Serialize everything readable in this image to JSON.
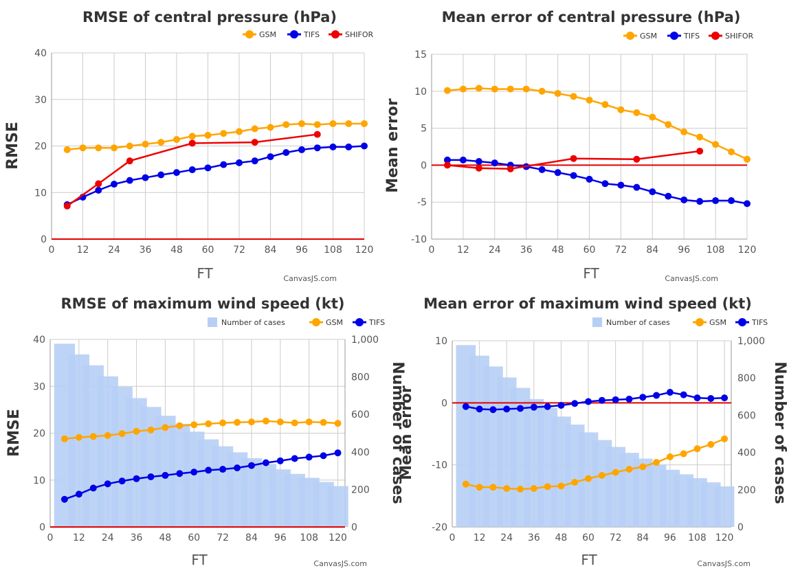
{
  "watermark": "CanvasJS.com",
  "colors": {
    "gsm": "#ffa500",
    "tifs": "#0000e6",
    "shifor": "#ee0000",
    "cases": "#b7cff5",
    "zero_line": "#e00000"
  },
  "chart_data": [
    {
      "type": "line",
      "title": "RMSE of central pressure (hPa)",
      "xlabel": "FT",
      "ylabel": "RMSE",
      "xlim": [
        0,
        120
      ],
      "ylim": [
        0,
        40
      ],
      "xticks": [
        "0",
        "12",
        "24",
        "36",
        "48",
        "60",
        "72",
        "84",
        "96",
        "108",
        "120"
      ],
      "yticks": [
        "0",
        "10",
        "20",
        "30",
        "40"
      ],
      "grid": true,
      "legend": "top-right",
      "series": [
        {
          "name": "GSM",
          "color": "#ffa500",
          "x": [
            6,
            12,
            18,
            24,
            30,
            36,
            42,
            48,
            54,
            60,
            66,
            72,
            78,
            84,
            90,
            96,
            102,
            108,
            114,
            120
          ],
          "values": [
            19.2,
            19.6,
            19.6,
            19.6,
            20.0,
            20.4,
            20.8,
            21.4,
            22.1,
            22.3,
            22.7,
            23.1,
            23.7,
            24.0,
            24.6,
            24.8,
            24.6,
            24.8,
            24.8,
            24.8
          ]
        },
        {
          "name": "TIFS",
          "color": "#0000e6",
          "x": [
            6,
            12,
            18,
            24,
            30,
            36,
            42,
            48,
            54,
            60,
            66,
            72,
            78,
            84,
            90,
            96,
            102,
            108,
            114,
            120
          ],
          "values": [
            7.4,
            9.0,
            10.5,
            11.8,
            12.6,
            13.2,
            13.8,
            14.3,
            14.9,
            15.3,
            16.0,
            16.4,
            16.8,
            17.7,
            18.6,
            19.2,
            19.6,
            19.8,
            19.8,
            20.0
          ]
        },
        {
          "name": "SHIFOR",
          "color": "#ee0000",
          "x": [
            6,
            18,
            30,
            54,
            78,
            102
          ],
          "values": [
            7.1,
            11.9,
            16.8,
            20.6,
            20.8,
            22.5
          ]
        }
      ]
    },
    {
      "type": "line",
      "title": "Mean error of central pressure (hPa)",
      "xlabel": "FT",
      "ylabel": "Mean error",
      "xlim": [
        0,
        120
      ],
      "ylim": [
        -10,
        15
      ],
      "xticks": [
        "0",
        "12",
        "24",
        "36",
        "48",
        "60",
        "72",
        "84",
        "96",
        "108",
        "120"
      ],
      "yticks": [
        "-10",
        "-5",
        "0",
        "5",
        "10",
        "15"
      ],
      "grid": true,
      "legend": "top-right",
      "series": [
        {
          "name": "GSM",
          "color": "#ffa500",
          "x": [
            6,
            12,
            18,
            24,
            30,
            36,
            42,
            48,
            54,
            60,
            66,
            72,
            78,
            84,
            90,
            96,
            102,
            108,
            114,
            120
          ],
          "values": [
            10.1,
            10.3,
            10.4,
            10.3,
            10.3,
            10.3,
            10.0,
            9.7,
            9.3,
            8.8,
            8.2,
            7.5,
            7.1,
            6.5,
            5.5,
            4.5,
            3.8,
            2.8,
            1.8,
            0.8
          ]
        },
        {
          "name": "TIFS",
          "color": "#0000e6",
          "x": [
            6,
            12,
            18,
            24,
            30,
            36,
            42,
            48,
            54,
            60,
            66,
            72,
            78,
            84,
            90,
            96,
            102,
            108,
            114,
            120
          ],
          "values": [
            0.7,
            0.7,
            0.5,
            0.3,
            0.0,
            -0.2,
            -0.6,
            -1.0,
            -1.4,
            -1.9,
            -2.5,
            -2.7,
            -3.0,
            -3.6,
            -4.2,
            -4.7,
            -4.9,
            -4.8,
            -4.8,
            -5.2
          ]
        },
        {
          "name": "SHIFOR",
          "color": "#ee0000",
          "x": [
            6,
            18,
            30,
            54,
            78,
            102
          ],
          "values": [
            0.0,
            -0.4,
            -0.5,
            0.9,
            0.8,
            1.9
          ]
        }
      ]
    },
    {
      "type": "bar-line",
      "title": "RMSE of maximum wind speed (kt)",
      "xlabel": "FT",
      "ylabel": "RMSE",
      "y2label": "Number of cases",
      "xlim": [
        0,
        123
      ],
      "ylim": [
        0,
        40
      ],
      "y2lim": [
        0,
        1000
      ],
      "xticks": [
        "0",
        "12",
        "24",
        "36",
        "48",
        "60",
        "72",
        "84",
        "96",
        "108",
        "120"
      ],
      "yticks": [
        "0",
        "10",
        "20",
        "30",
        "40"
      ],
      "y2ticks": [
        "0",
        "200",
        "400",
        "600",
        "800",
        "1,000"
      ],
      "grid": true,
      "legend": "top-right",
      "bars": {
        "name": "Number of cases",
        "color": "#b7cff5",
        "x": [
          6,
          12,
          18,
          24,
          30,
          36,
          42,
          48,
          54,
          60,
          66,
          72,
          78,
          84,
          90,
          96,
          102,
          108,
          114,
          120
        ],
        "values": [
          977,
          920,
          862,
          803,
          747,
          687,
          640,
          593,
          550,
          508,
          467,
          430,
          398,
          367,
          336,
          307,
          283,
          262,
          240,
          218
        ]
      },
      "series": [
        {
          "name": "GSM",
          "color": "#ffa500",
          "x": [
            6,
            12,
            18,
            24,
            30,
            36,
            42,
            48,
            54,
            60,
            66,
            72,
            78,
            84,
            90,
            96,
            102,
            108,
            114,
            120
          ],
          "values": [
            18.8,
            19.1,
            19.3,
            19.5,
            19.9,
            20.4,
            20.7,
            21.2,
            21.6,
            21.8,
            22.0,
            22.2,
            22.3,
            22.4,
            22.6,
            22.4,
            22.2,
            22.4,
            22.3,
            22.1
          ]
        },
        {
          "name": "TIFS",
          "color": "#0000e6",
          "x": [
            6,
            12,
            18,
            24,
            30,
            36,
            42,
            48,
            54,
            60,
            66,
            72,
            78,
            84,
            90,
            96,
            102,
            108,
            114,
            120
          ],
          "values": [
            5.9,
            7.0,
            8.3,
            9.2,
            9.8,
            10.3,
            10.7,
            11.0,
            11.4,
            11.7,
            12.1,
            12.3,
            12.6,
            13.1,
            13.7,
            14.1,
            14.6,
            14.9,
            15.2,
            15.8
          ]
        }
      ]
    },
    {
      "type": "bar-line",
      "title": "Mean error of maximum wind speed (kt)",
      "xlabel": "FT",
      "ylabel": "Mean error",
      "y2label": "Number of cases",
      "xlim": [
        0,
        123
      ],
      "ylim": [
        -20,
        10
      ],
      "y2lim": [
        0,
        1000
      ],
      "xticks": [
        "0",
        "12",
        "24",
        "36",
        "48",
        "60",
        "72",
        "84",
        "96",
        "108",
        "120"
      ],
      "yticks": [
        "-20",
        "-10",
        "0",
        "10"
      ],
      "y2ticks": [
        "0",
        "200",
        "400",
        "600",
        "800",
        "1,000"
      ],
      "grid": true,
      "legend": "top-right",
      "bars": {
        "name": "Number of cases",
        "color": "#b7cff5",
        "x": [
          6,
          12,
          18,
          24,
          30,
          36,
          42,
          48,
          54,
          60,
          66,
          72,
          78,
          84,
          90,
          96,
          102,
          108,
          114,
          120
        ],
        "values": [
          977,
          920,
          862,
          803,
          747,
          687,
          640,
          593,
          550,
          508,
          467,
          430,
          398,
          367,
          336,
          307,
          283,
          262,
          240,
          218
        ]
      },
      "series": [
        {
          "name": "GSM",
          "color": "#ffa500",
          "x": [
            6,
            12,
            18,
            24,
            30,
            36,
            42,
            48,
            54,
            60,
            66,
            72,
            78,
            84,
            90,
            96,
            102,
            108,
            114,
            120
          ],
          "values": [
            -13.1,
            -13.6,
            -13.6,
            -13.8,
            -13.9,
            -13.8,
            -13.5,
            -13.4,
            -12.8,
            -12.2,
            -11.7,
            -11.2,
            -10.7,
            -10.3,
            -9.6,
            -8.7,
            -8.2,
            -7.4,
            -6.7,
            -5.8
          ]
        },
        {
          "name": "TIFS",
          "color": "#0000e6",
          "x": [
            6,
            12,
            18,
            24,
            30,
            36,
            42,
            48,
            54,
            60,
            66,
            72,
            78,
            84,
            90,
            96,
            102,
            108,
            114,
            120
          ],
          "values": [
            -0.6,
            -1.0,
            -1.1,
            -1.0,
            -0.9,
            -0.7,
            -0.6,
            -0.4,
            -0.1,
            0.2,
            0.4,
            0.5,
            0.6,
            0.9,
            1.2,
            1.7,
            1.3,
            0.8,
            0.7,
            0.8
          ]
        }
      ]
    }
  ]
}
